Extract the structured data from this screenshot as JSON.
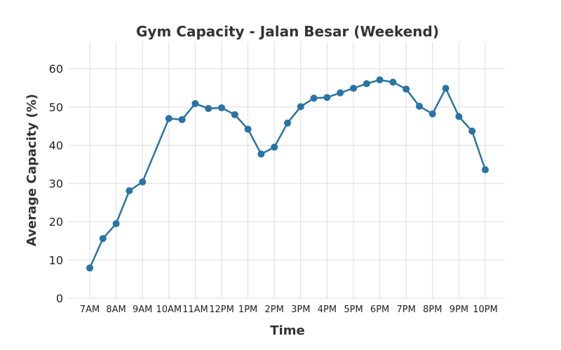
{
  "chart_data": {
    "type": "line",
    "title": "Gym Capacity - Jalan Besar (Weekend)",
    "xlabel": "Time",
    "ylabel": "Average Capacity (%)",
    "x_tick_labels": [
      "7AM",
      "8AM",
      "9AM",
      "10AM",
      "11AM",
      "12PM",
      "1PM",
      "2PM",
      "3PM",
      "4PM",
      "5PM",
      "6PM",
      "7PM",
      "8PM",
      "9PM",
      "10PM"
    ],
    "y_ticks": [
      0,
      10,
      20,
      30,
      40,
      50,
      60
    ],
    "x_range": [
      7,
      22
    ],
    "ylim": [
      0,
      67
    ],
    "grid": true,
    "series": [
      {
        "color": "#2874a6",
        "points": [
          {
            "x": 7.0,
            "y": 7.9
          },
          {
            "x": 7.5,
            "y": 15.6
          },
          {
            "x": 8.0,
            "y": 19.5
          },
          {
            "x": 8.5,
            "y": 28.1
          },
          {
            "x": 9.0,
            "y": 30.4
          },
          {
            "x": 10.0,
            "y": 47.0
          },
          {
            "x": 10.5,
            "y": 46.7
          },
          {
            "x": 11.0,
            "y": 50.9
          },
          {
            "x": 11.5,
            "y": 49.6
          },
          {
            "x": 12.0,
            "y": 49.8
          },
          {
            "x": 12.5,
            "y": 48.0
          },
          {
            "x": 13.0,
            "y": 44.2
          },
          {
            "x": 13.5,
            "y": 37.7
          },
          {
            "x": 14.0,
            "y": 39.5
          },
          {
            "x": 14.5,
            "y": 45.8
          },
          {
            "x": 15.0,
            "y": 50.1
          },
          {
            "x": 15.5,
            "y": 52.3
          },
          {
            "x": 16.0,
            "y": 52.5
          },
          {
            "x": 16.5,
            "y": 53.7
          },
          {
            "x": 17.0,
            "y": 54.9
          },
          {
            "x": 17.5,
            "y": 56.1
          },
          {
            "x": 18.0,
            "y": 57.1
          },
          {
            "x": 18.5,
            "y": 56.5
          },
          {
            "x": 19.0,
            "y": 54.7
          },
          {
            "x": 19.5,
            "y": 50.2
          },
          {
            "x": 20.0,
            "y": 48.2
          },
          {
            "x": 20.5,
            "y": 54.9
          },
          {
            "x": 21.0,
            "y": 47.5
          },
          {
            "x": 21.5,
            "y": 43.7
          },
          {
            "x": 22.0,
            "y": 33.6
          }
        ]
      }
    ]
  }
}
